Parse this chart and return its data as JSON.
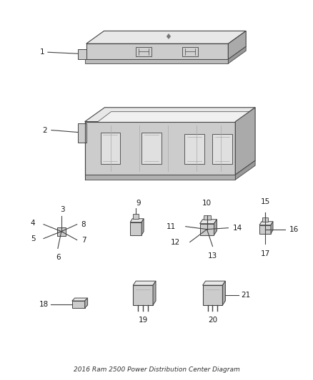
{
  "title": "2016 Ram 2500 Power Distribution Center Diagram",
  "bg_color": "#ffffff",
  "text_color": "#1a1a1a",
  "line_color": "#888888",
  "dark_line": "#444444",
  "fill_light": "#e8e8e8",
  "fill_mid": "#cccccc",
  "fill_dark": "#aaaaaa",
  "figsize": [
    4.38,
    5.33
  ],
  "dpi": 100
}
